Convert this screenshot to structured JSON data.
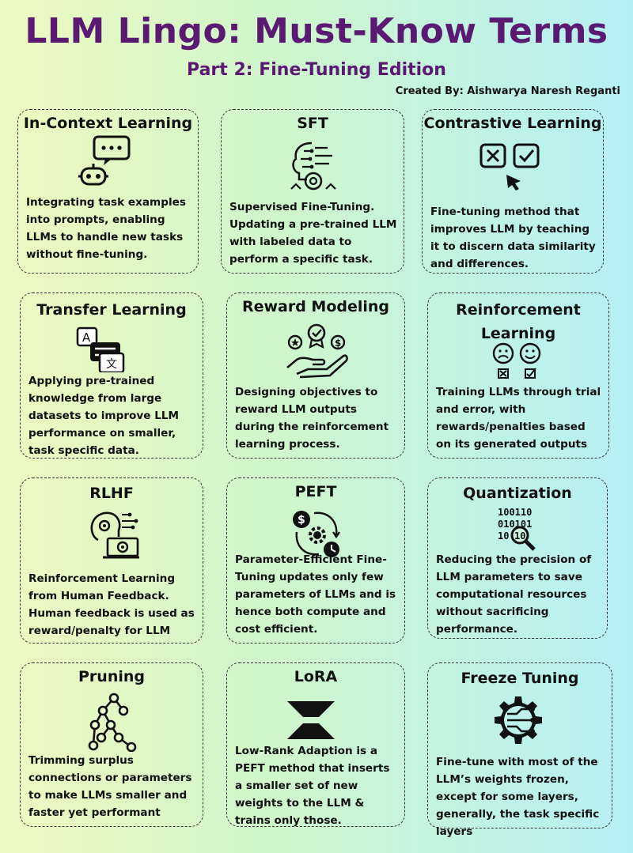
{
  "header": {
    "title": "LLM Lingo: Must-Know Terms",
    "subtitle": "Part 2: Fine-Tuning Edition",
    "credit": "Created By: Aishwarya Naresh Reganti"
  },
  "cards": [
    {
      "title": "In-Context Learning",
      "icon": "chat-robot-icon",
      "desc": "Integrating task examples into prompts, enabling LLMs to handle new tasks without fine-tuning."
    },
    {
      "title": "SFT",
      "icon": "brain-gear-icon",
      "desc": "Supervised Fine-Tuning. Updating a pre-trained LLM with labeled data to perform a specific task."
    },
    {
      "title": "Contrastive Learning",
      "icon": "check-cross-icon",
      "desc": "Fine-tuning  method that improves LLM by teaching it to discern data similarity and differences."
    },
    {
      "title": "Transfer Learning",
      "icon": "translate-icon",
      "desc": "Applying pre-trained knowledge from large datasets to improve LLM performance on smaller, task specific data."
    },
    {
      "title": "Reward Modeling",
      "icon": "reward-hand-icon",
      "desc": "Designing objectives to reward LLM outputs during the reinforcement learning process."
    },
    {
      "title": "Reinforcement Learning",
      "icon": "sad-happy-face-icon",
      "desc": "Training LLMs through trial and error, with rewards/penalties based on its generated outputs"
    },
    {
      "title": "RLHF",
      "icon": "human-feedback-icon",
      "desc": "Reinforcement Learning from Human Feedback. Human feedback is used as reward/penalty for LLM"
    },
    {
      "title": "PEFT",
      "icon": "efficiency-cycle-icon",
      "desc": "Parameter-Efficient Fine-Tuning updates only few parameters of LLMs and is hence both compute and cost efficient."
    },
    {
      "title": "Quantization",
      "icon": "binary-magnifier-icon",
      "desc": "Reducing the precision of LLM parameters to save computational resources without sacrificing performance."
    },
    {
      "title": "Pruning",
      "icon": "tree-graph-icon",
      "desc": "Trimming surplus connections or parameters to make LLMs smaller and faster yet performant"
    },
    {
      "title": "LoRA",
      "icon": "hourglass-icon",
      "desc": "Low-Rank Adaption is a PEFT method that inserts a smaller set of new weights to the LLM & trains only those."
    },
    {
      "title": "Freeze Tuning",
      "icon": "circuit-gear-icon",
      "desc": "Fine-tune with most of the LLM’s weights frozen, except for some layers, generally, the task specific layers"
    }
  ]
}
